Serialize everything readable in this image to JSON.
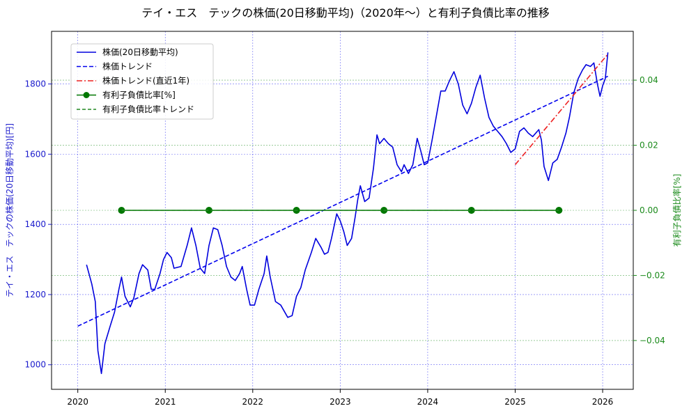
{
  "chart_data": {
    "type": "line",
    "title": "テイ・エス　テックの株価(20日移動平均)（2020年〜）と有利子負債比率の推移",
    "ylabel_left": "テイ・エス　テックの株価(20日移動平均)[円]",
    "ylabel_right": "有利子負債比率[%]",
    "xlim": [
      2019.7,
      2026.35
    ],
    "ylim_left": [
      930,
      1950
    ],
    "ylim_right": [
      -0.055,
      0.055
    ],
    "x_ticks": [
      2020,
      2021,
      2022,
      2023,
      2024,
      2025,
      2026
    ],
    "x_tick_labels": [
      "2020",
      "2021",
      "2022",
      "2023",
      "2024",
      "2025",
      "2026"
    ],
    "y_left_ticks": [
      1000,
      1200,
      1400,
      1600,
      1800
    ],
    "y_left_tick_labels": [
      "1000",
      "1200",
      "1400",
      "1600",
      "1800"
    ],
    "y_right_ticks": [
      -0.04,
      -0.02,
      0.0,
      0.02,
      0.04
    ],
    "y_right_tick_labels": [
      "−0.04",
      "−0.02",
      "0.00",
      "0.02",
      "0.04"
    ],
    "grid": true,
    "legend_position": "top-left",
    "legend": [
      "株価(20日移動平均)",
      "株価トレンド",
      "株価トレンド(直近1年)",
      "有利子負債比率[%]",
      "有利子負債比率トレンド"
    ],
    "colors": {
      "price": "#0000dd",
      "trend": "#0000ee",
      "recent_trend": "#ee2222",
      "debt": "#007700",
      "debt_trend": "#228822",
      "left_axis": "#1a1acc",
      "right_axis": "#1a8a1a"
    },
    "series": [
      {
        "name": "株価(20日移動平均)",
        "axis": "left",
        "style": "solid",
        "points": [
          [
            2020.1,
            1285
          ],
          [
            2020.16,
            1230
          ],
          [
            2020.2,
            1180
          ],
          [
            2020.23,
            1040
          ],
          [
            2020.27,
            975
          ],
          [
            2020.31,
            1060
          ],
          [
            2020.37,
            1110
          ],
          [
            2020.42,
            1150
          ],
          [
            2020.47,
            1215
          ],
          [
            2020.5,
            1250
          ],
          [
            2020.54,
            1195
          ],
          [
            2020.6,
            1165
          ],
          [
            2020.64,
            1190
          ],
          [
            2020.7,
            1260
          ],
          [
            2020.74,
            1285
          ],
          [
            2020.8,
            1270
          ],
          [
            2020.84,
            1215
          ],
          [
            2020.88,
            1215
          ],
          [
            2020.94,
            1260
          ],
          [
            2020.98,
            1300
          ],
          [
            2021.02,
            1320
          ],
          [
            2021.07,
            1305
          ],
          [
            2021.1,
            1275
          ],
          [
            2021.18,
            1280
          ],
          [
            2021.25,
            1340
          ],
          [
            2021.3,
            1390
          ],
          [
            2021.35,
            1340
          ],
          [
            2021.4,
            1275
          ],
          [
            2021.45,
            1260
          ],
          [
            2021.5,
            1340
          ],
          [
            2021.55,
            1390
          ],
          [
            2021.6,
            1385
          ],
          [
            2021.65,
            1340
          ],
          [
            2021.7,
            1280
          ],
          [
            2021.75,
            1250
          ],
          [
            2021.8,
            1240
          ],
          [
            2021.85,
            1260
          ],
          [
            2021.88,
            1280
          ],
          [
            2021.93,
            1215
          ],
          [
            2021.97,
            1170
          ],
          [
            2022.02,
            1170
          ],
          [
            2022.07,
            1215
          ],
          [
            2022.13,
            1260
          ],
          [
            2022.16,
            1310
          ],
          [
            2022.2,
            1250
          ],
          [
            2022.26,
            1180
          ],
          [
            2022.32,
            1170
          ],
          [
            2022.4,
            1135
          ],
          [
            2022.45,
            1140
          ],
          [
            2022.5,
            1195
          ],
          [
            2022.55,
            1220
          ],
          [
            2022.6,
            1270
          ],
          [
            2022.67,
            1320
          ],
          [
            2022.72,
            1360
          ],
          [
            2022.78,
            1335
          ],
          [
            2022.82,
            1315
          ],
          [
            2022.86,
            1320
          ],
          [
            2022.9,
            1360
          ],
          [
            2022.96,
            1430
          ],
          [
            2023.0,
            1410
          ],
          [
            2023.04,
            1380
          ],
          [
            2023.08,
            1340
          ],
          [
            2023.13,
            1360
          ],
          [
            2023.17,
            1420
          ],
          [
            2023.2,
            1470
          ],
          [
            2023.23,
            1510
          ],
          [
            2023.28,
            1465
          ],
          [
            2023.33,
            1475
          ],
          [
            2023.38,
            1560
          ],
          [
            2023.42,
            1655
          ],
          [
            2023.45,
            1630
          ],
          [
            2023.5,
            1645
          ],
          [
            2023.55,
            1630
          ],
          [
            2023.6,
            1620
          ],
          [
            2023.65,
            1570
          ],
          [
            2023.7,
            1550
          ],
          [
            2023.73,
            1570
          ],
          [
            2023.78,
            1545
          ],
          [
            2023.83,
            1570
          ],
          [
            2023.88,
            1645
          ],
          [
            2023.92,
            1610
          ],
          [
            2023.96,
            1570
          ],
          [
            2024.0,
            1575
          ],
          [
            2024.05,
            1640
          ],
          [
            2024.1,
            1710
          ],
          [
            2024.15,
            1780
          ],
          [
            2024.2,
            1780
          ],
          [
            2024.25,
            1810
          ],
          [
            2024.3,
            1835
          ],
          [
            2024.35,
            1800
          ],
          [
            2024.4,
            1740
          ],
          [
            2024.45,
            1715
          ],
          [
            2024.5,
            1745
          ],
          [
            2024.55,
            1790
          ],
          [
            2024.6,
            1825
          ],
          [
            2024.65,
            1760
          ],
          [
            2024.7,
            1705
          ],
          [
            2024.75,
            1680
          ],
          [
            2024.8,
            1665
          ],
          [
            2024.85,
            1650
          ],
          [
            2024.9,
            1630
          ],
          [
            2024.95,
            1605
          ],
          [
            2025.0,
            1615
          ],
          [
            2025.05,
            1665
          ],
          [
            2025.1,
            1675
          ],
          [
            2025.15,
            1660
          ],
          [
            2025.2,
            1650
          ],
          [
            2025.27,
            1670
          ],
          [
            2025.3,
            1640
          ],
          [
            2025.33,
            1565
          ],
          [
            2025.38,
            1525
          ],
          [
            2025.43,
            1575
          ],
          [
            2025.48,
            1585
          ],
          [
            2025.53,
            1620
          ],
          [
            2025.58,
            1660
          ],
          [
            2025.62,
            1705
          ],
          [
            2025.67,
            1775
          ],
          [
            2025.72,
            1815
          ],
          [
            2025.77,
            1840
          ],
          [
            2025.81,
            1855
          ],
          [
            2025.86,
            1850
          ],
          [
            2025.9,
            1860
          ],
          [
            2025.94,
            1800
          ],
          [
            2025.97,
            1765
          ],
          [
            2026.0,
            1795
          ],
          [
            2026.03,
            1815
          ],
          [
            2026.06,
            1890
          ]
        ]
      },
      {
        "name": "株価トレンド",
        "axis": "left",
        "style": "dashed",
        "points": [
          [
            2020.0,
            1110
          ],
          [
            2026.06,
            1822
          ]
        ]
      },
      {
        "name": "株価トレンド(直近1年)",
        "axis": "left",
        "style": "dashdot",
        "points": [
          [
            2025.0,
            1570
          ],
          [
            2026.06,
            1885
          ]
        ]
      },
      {
        "name": "有利子負債比率[%]",
        "axis": "right",
        "style": "solid-markers",
        "points": [
          [
            2020.5,
            0.0
          ],
          [
            2021.5,
            0.0
          ],
          [
            2022.5,
            0.0
          ],
          [
            2023.5,
            0.0
          ],
          [
            2024.5,
            0.0
          ],
          [
            2025.5,
            0.0
          ]
        ]
      },
      {
        "name": "有利子負債比率トレンド",
        "axis": "right",
        "style": "dashed",
        "points": [
          [
            2020.5,
            0.0
          ],
          [
            2025.5,
            0.0
          ]
        ]
      }
    ]
  }
}
